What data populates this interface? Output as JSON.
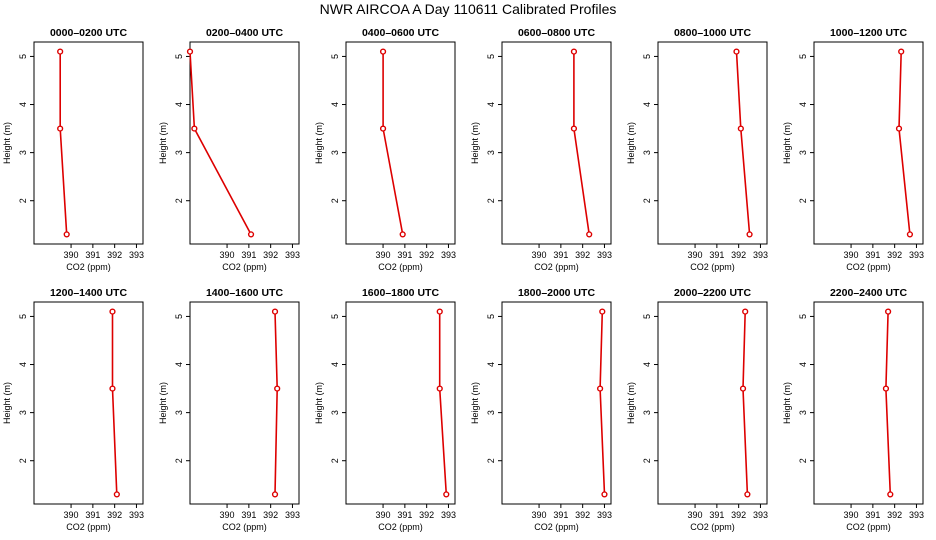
{
  "chart_data": {
    "type": "line",
    "title": "NWR AIRCOA A  Day 110611  Calibrated Profiles",
    "xlabel": "CO2 (ppm)",
    "ylabel": "Height (m)",
    "xlim": [
      388.3,
      393.3
    ],
    "ylim": [
      1.1,
      5.3
    ],
    "xticks": [
      390,
      391,
      392,
      393
    ],
    "yticks": [
      2,
      3,
      4,
      5
    ],
    "panels": [
      {
        "title": "0000–0200 UTC",
        "points": [
          {
            "x": 389.5,
            "y": 5.1
          },
          {
            "x": 389.5,
            "y": 3.5
          },
          {
            "x": 389.8,
            "y": 1.3
          }
        ]
      },
      {
        "title": "0200–0400 UTC",
        "points": [
          {
            "x": 388.3,
            "y": 5.1
          },
          {
            "x": 388.5,
            "y": 3.5
          },
          {
            "x": 391.1,
            "y": 1.3
          }
        ]
      },
      {
        "title": "0400–0600 UTC",
        "points": [
          {
            "x": 390.0,
            "y": 5.1
          },
          {
            "x": 390.0,
            "y": 3.5
          },
          {
            "x": 390.9,
            "y": 1.3
          }
        ]
      },
      {
        "title": "0600–0800 UTC",
        "points": [
          {
            "x": 391.6,
            "y": 5.1
          },
          {
            "x": 391.6,
            "y": 3.5
          },
          {
            "x": 392.3,
            "y": 1.3
          }
        ]
      },
      {
        "title": "0800–1000 UTC",
        "points": [
          {
            "x": 391.9,
            "y": 5.1
          },
          {
            "x": 392.1,
            "y": 3.5
          },
          {
            "x": 392.5,
            "y": 1.3
          }
        ]
      },
      {
        "title": "1000–1200 UTC",
        "points": [
          {
            "x": 392.3,
            "y": 5.1
          },
          {
            "x": 392.2,
            "y": 3.5
          },
          {
            "x": 392.7,
            "y": 1.3
          }
        ]
      },
      {
        "title": "1200–1400 UTC",
        "points": [
          {
            "x": 391.9,
            "y": 5.1
          },
          {
            "x": 391.9,
            "y": 3.5
          },
          {
            "x": 392.1,
            "y": 1.3
          }
        ]
      },
      {
        "title": "1400–1600 UTC",
        "points": [
          {
            "x": 392.2,
            "y": 5.1
          },
          {
            "x": 392.3,
            "y": 3.5
          },
          {
            "x": 392.2,
            "y": 1.3
          }
        ]
      },
      {
        "title": "1600–1800 UTC",
        "points": [
          {
            "x": 392.6,
            "y": 5.1
          },
          {
            "x": 392.6,
            "y": 3.5
          },
          {
            "x": 392.9,
            "y": 1.3
          }
        ]
      },
      {
        "title": "1800–2000 UTC",
        "points": [
          {
            "x": 392.9,
            "y": 5.1
          },
          {
            "x": 392.8,
            "y": 3.5
          },
          {
            "x": 393.0,
            "y": 1.3
          }
        ]
      },
      {
        "title": "2000–2200 UTC",
        "points": [
          {
            "x": 392.3,
            "y": 5.1
          },
          {
            "x": 392.2,
            "y": 3.5
          },
          {
            "x": 392.4,
            "y": 1.3
          }
        ]
      },
      {
        "title": "2200–2400 UTC",
        "points": [
          {
            "x": 391.7,
            "y": 5.1
          },
          {
            "x": 391.6,
            "y": 3.5
          },
          {
            "x": 391.8,
            "y": 1.3
          }
        ]
      }
    ]
  }
}
